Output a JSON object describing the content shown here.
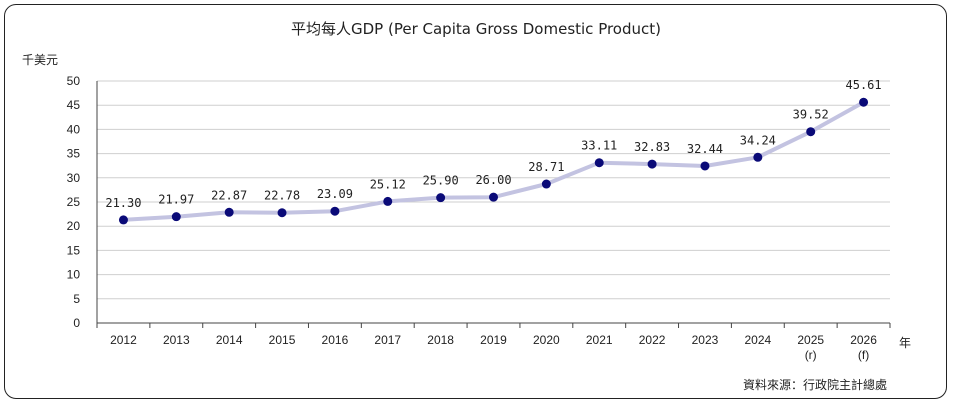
{
  "chart_data": {
    "type": "line",
    "title": "平均每人GDP (Per Capita Gross Domestic Product)",
    "ylabel": "千美元",
    "xlabel": "年",
    "source": "資料來源：行政院主計總處",
    "ylim": [
      0,
      50
    ],
    "yticks": [
      "0",
      "5",
      "10",
      "15",
      "20",
      "25",
      "30",
      "35",
      "40",
      "45",
      "50"
    ],
    "categories": [
      [
        "2012"
      ],
      [
        "2013"
      ],
      [
        "2014"
      ],
      [
        "2015"
      ],
      [
        "2016"
      ],
      [
        "2017"
      ],
      [
        "2018"
      ],
      [
        "2019"
      ],
      [
        "2020"
      ],
      [
        "2021"
      ],
      [
        "2022"
      ],
      [
        "2023"
      ],
      [
        "2024"
      ],
      [
        "2025",
        "(r)"
      ],
      [
        "2026",
        "(f)"
      ]
    ],
    "values": [
      21.3,
      21.97,
      22.87,
      22.78,
      23.09,
      25.12,
      25.9,
      26.0,
      28.71,
      33.11,
      32.83,
      32.44,
      34.24,
      39.52,
      45.61
    ],
    "value_labels": [
      "21.30",
      "21.97",
      "22.87",
      "22.78",
      "23.09",
      "25.12",
      "25.90",
      "26.00",
      "28.71",
      "33.11",
      "32.83",
      "32.44",
      "34.24",
      "39.52",
      "45.61"
    ],
    "grid": true,
    "line_color": "#c3c3e1",
    "marker_color": "#0a0a78"
  }
}
